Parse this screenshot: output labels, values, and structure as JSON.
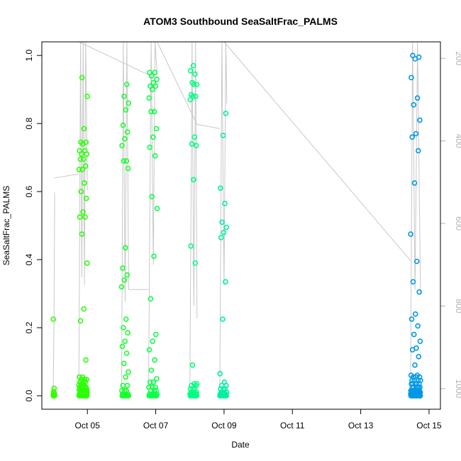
{
  "chart_data": {
    "type": "scatter",
    "title": "ATOM3 Southbound SeaSaltFrac_PALMS",
    "xlabel": "Date",
    "ylabel": "SeaSaltFrac_PALMS",
    "xlim": [
      "2017-10-03T16:00",
      "2017-10-15T08:00"
    ],
    "ylim": [
      0,
      1.04
    ],
    "x_ticks": [
      {
        "date": "2017-10-05",
        "label": "Oct 05"
      },
      {
        "date": "2017-10-07",
        "label": "Oct 07"
      },
      {
        "date": "2017-10-09",
        "label": "Oct 09"
      },
      {
        "date": "2017-10-11",
        "label": "Oct 11"
      },
      {
        "date": "2017-10-13",
        "label": "Oct 13"
      },
      {
        "date": "2017-10-15",
        "label": "Oct 15"
      }
    ],
    "y_ticks": [
      "0.0",
      "0.2",
      "0.4",
      "0.6",
      "0.8",
      "1.0"
    ],
    "secondary_axis": {
      "side": "right",
      "color": "#b3b3b3",
      "reversed": true,
      "range": [
        1050,
        160
      ],
      "ticks": [
        "200",
        "400",
        "600",
        "800",
        "1000"
      ]
    },
    "grid": false,
    "marker": "open-circle",
    "color_scale": [
      "#33ff00",
      "#00ff66",
      "#00e6a0",
      "#00c4d6",
      "#0099e6"
    ],
    "track_line_color": "#c8c8c8",
    "flights": [
      {
        "x_start": "2017-10-04T00:00",
        "x_end": "2017-10-04T01:00",
        "color": "#33ff00",
        "points": [
          [
            0.225,
            1
          ],
          [
            0.022,
            1
          ],
          [
            0.012,
            1
          ],
          [
            0.008,
            2
          ],
          [
            0.004,
            3
          ],
          [
            0.002,
            4
          ],
          [
            0.0,
            6
          ]
        ],
        "profile": [
          [
            0,
            1000
          ],
          [
            0.5,
            840
          ],
          [
            1,
            525
          ]
        ]
      },
      {
        "x_start": "2017-10-04T18:00",
        "x_end": "2017-10-05T00:00",
        "color": "#2dff0a",
        "points": [
          [
            0.935,
            1
          ],
          [
            0.88,
            1
          ],
          [
            0.785,
            1
          ],
          [
            0.745,
            2
          ],
          [
            0.74,
            1
          ],
          [
            0.72,
            2
          ],
          [
            0.71,
            2
          ],
          [
            0.695,
            2
          ],
          [
            0.675,
            1
          ],
          [
            0.665,
            2
          ],
          [
            0.625,
            1
          ],
          [
            0.6,
            1
          ],
          [
            0.58,
            1
          ],
          [
            0.54,
            1
          ],
          [
            0.525,
            2
          ],
          [
            0.475,
            1
          ],
          [
            0.39,
            1
          ],
          [
            0.255,
            1
          ],
          [
            0.22,
            1
          ],
          [
            0.105,
            1
          ],
          [
            0.055,
            2
          ],
          [
            0.048,
            3
          ],
          [
            0.04,
            3
          ],
          [
            0.032,
            4
          ],
          [
            0.025,
            5
          ],
          [
            0.018,
            6
          ],
          [
            0.01,
            8
          ],
          [
            0.005,
            10
          ],
          [
            0.0,
            14
          ]
        ],
        "profile": [
          [
            0,
            1000
          ],
          [
            0.2,
            160
          ],
          [
            0.35,
            730
          ],
          [
            0.5,
            160
          ],
          [
            0.65,
            750
          ],
          [
            0.8,
            160
          ],
          [
            1,
            520
          ]
        ]
      },
      {
        "x_start": "2017-10-06T00:00",
        "x_end": "2017-10-06T05:00",
        "color": "#1aff2e",
        "points": [
          [
            0.915,
            1
          ],
          [
            0.88,
            1
          ],
          [
            0.86,
            1
          ],
          [
            0.84,
            1
          ],
          [
            0.795,
            1
          ],
          [
            0.775,
            1
          ],
          [
            0.755,
            1
          ],
          [
            0.735,
            1
          ],
          [
            0.69,
            2
          ],
          [
            0.668,
            1
          ],
          [
            0.435,
            1
          ],
          [
            0.375,
            1
          ],
          [
            0.355,
            1
          ],
          [
            0.34,
            1
          ],
          [
            0.32,
            1
          ],
          [
            0.225,
            1
          ],
          [
            0.2,
            1
          ],
          [
            0.185,
            1
          ],
          [
            0.16,
            1
          ],
          [
            0.145,
            1
          ],
          [
            0.125,
            1
          ],
          [
            0.095,
            1
          ],
          [
            0.07,
            1
          ],
          [
            0.055,
            1
          ],
          [
            0.03,
            2
          ],
          [
            0.015,
            3
          ],
          [
            0.005,
            4
          ],
          [
            0.0,
            8
          ]
        ],
        "profile": [
          [
            0,
            1000
          ],
          [
            0.25,
            160
          ],
          [
            0.5,
            790
          ],
          [
            0.75,
            160
          ],
          [
            1,
            760
          ]
        ]
      },
      {
        "x_start": "2017-10-06T19:00",
        "x_end": "2017-10-07T01:00",
        "color": "#0dff4a",
        "points": [
          [
            0.95,
            2
          ],
          [
            0.94,
            1
          ],
          [
            0.93,
            1
          ],
          [
            0.92,
            1
          ],
          [
            0.91,
            2
          ],
          [
            0.9,
            1
          ],
          [
            0.875,
            1
          ],
          [
            0.835,
            2
          ],
          [
            0.785,
            1
          ],
          [
            0.76,
            1
          ],
          [
            0.73,
            1
          ],
          [
            0.705,
            1
          ],
          [
            0.585,
            1
          ],
          [
            0.55,
            1
          ],
          [
            0.41,
            1
          ],
          [
            0.285,
            1
          ],
          [
            0.18,
            1
          ],
          [
            0.16,
            1
          ],
          [
            0.135,
            1
          ],
          [
            0.105,
            1
          ],
          [
            0.075,
            1
          ],
          [
            0.05,
            1
          ],
          [
            0.04,
            2
          ],
          [
            0.025,
            3
          ],
          [
            0.015,
            3
          ],
          [
            0.005,
            5
          ],
          [
            0.0,
            8
          ]
        ],
        "profile": [
          [
            0,
            1000
          ],
          [
            0.3,
            160
          ],
          [
            0.55,
            700
          ],
          [
            0.75,
            160
          ],
          [
            1,
            240
          ]
        ]
      },
      {
        "x_start": "2017-10-08T00:00",
        "x_end": "2017-10-08T05:00",
        "color": "#00ff80",
        "points": [
          [
            0.97,
            1
          ],
          [
            0.955,
            1
          ],
          [
            0.945,
            1
          ],
          [
            0.92,
            1
          ],
          [
            0.915,
            2
          ],
          [
            0.885,
            1
          ],
          [
            0.88,
            2
          ],
          [
            0.87,
            1
          ],
          [
            0.76,
            1
          ],
          [
            0.74,
            1
          ],
          [
            0.735,
            1
          ],
          [
            0.635,
            1
          ],
          [
            0.44,
            1
          ],
          [
            0.39,
            1
          ],
          [
            0.09,
            1
          ],
          [
            0.035,
            2
          ],
          [
            0.03,
            2
          ],
          [
            0.02,
            3
          ],
          [
            0.01,
            4
          ],
          [
            0.005,
            6
          ],
          [
            0.0,
            10
          ]
        ],
        "profile": [
          [
            0,
            1000
          ],
          [
            0.3,
            160
          ],
          [
            0.55,
            800
          ],
          [
            0.8,
            160
          ],
          [
            1,
            830
          ]
        ]
      },
      {
        "x_start": "2017-10-08T21:00",
        "x_end": "2017-10-09T02:00",
        "color": "#00f0a0",
        "points": [
          [
            0.83,
            1
          ],
          [
            0.765,
            1
          ],
          [
            0.61,
            1
          ],
          [
            0.565,
            1
          ],
          [
            0.51,
            1
          ],
          [
            0.495,
            1
          ],
          [
            0.48,
            1
          ],
          [
            0.465,
            1
          ],
          [
            0.335,
            1
          ],
          [
            0.225,
            1
          ],
          [
            0.065,
            1
          ],
          [
            0.04,
            1
          ],
          [
            0.03,
            2
          ],
          [
            0.02,
            3
          ],
          [
            0.01,
            4
          ],
          [
            0.005,
            5
          ],
          [
            0.0,
            10
          ]
        ],
        "profile": [
          [
            0,
            1000
          ],
          [
            0.3,
            160
          ],
          [
            0.6,
            750
          ],
          [
            0.85,
            160
          ],
          [
            1,
            310
          ]
        ]
      },
      {
        "x_start": "2017-10-14T11:00",
        "x_end": "2017-10-14T18:00",
        "color": "#0099e6",
        "points": [
          [
            1.0,
            1
          ],
          [
            0.995,
            1
          ],
          [
            0.99,
            1
          ],
          [
            0.935,
            1
          ],
          [
            0.875,
            1
          ],
          [
            0.855,
            1
          ],
          [
            0.81,
            1
          ],
          [
            0.77,
            1
          ],
          [
            0.76,
            1
          ],
          [
            0.72,
            1
          ],
          [
            0.625,
            1
          ],
          [
            0.475,
            1
          ],
          [
            0.395,
            1
          ],
          [
            0.335,
            1
          ],
          [
            0.305,
            1
          ],
          [
            0.24,
            1
          ],
          [
            0.225,
            1
          ],
          [
            0.205,
            1
          ],
          [
            0.18,
            1
          ],
          [
            0.16,
            1
          ],
          [
            0.14,
            1
          ],
          [
            0.135,
            1
          ],
          [
            0.115,
            1
          ],
          [
            0.09,
            1
          ],
          [
            0.06,
            2
          ],
          [
            0.055,
            3
          ],
          [
            0.045,
            4
          ],
          [
            0.035,
            5
          ],
          [
            0.025,
            6
          ],
          [
            0.015,
            8
          ],
          [
            0.01,
            10
          ],
          [
            0.005,
            12
          ],
          [
            0.0,
            16
          ]
        ],
        "profile": [
          [
            0,
            1000
          ],
          [
            0.2,
            160
          ],
          [
            0.45,
            760
          ],
          [
            0.7,
            160
          ],
          [
            1,
            770
          ]
        ]
      }
    ],
    "connectors": [
      {
        "from": [
          "2017-10-04T00:30",
          490
        ],
        "to": [
          "2017-10-04T18:00",
          480
        ]
      },
      {
        "from": [
          "2017-10-04T18:00",
          160
        ],
        "to": [
          "2017-10-06T19:00",
          240
        ]
      },
      {
        "from": [
          "2017-10-06T05:00",
          760
        ],
        "to": [
          "2017-10-06T19:00",
          760
        ]
      },
      {
        "from": [
          "2017-10-07T01:00",
          160
        ],
        "to": [
          "2017-10-08T05:00",
          360
        ]
      },
      {
        "from": [
          "2017-10-08T05:00",
          360
        ],
        "to": [
          "2017-10-08T21:00",
          370
        ]
      },
      {
        "from": [
          "2017-10-09T00:00",
          160
        ],
        "to": [
          "2017-10-14T11:00",
          690
        ]
      }
    ]
  }
}
